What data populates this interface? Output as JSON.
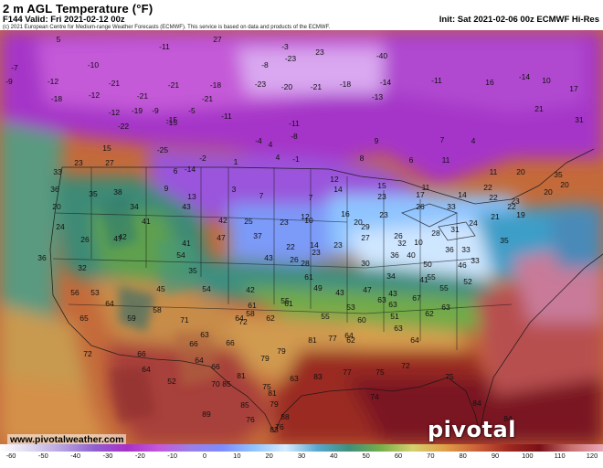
{
  "header": {
    "title": "2 m AGL Temperature (°F)",
    "valid": "F144 Valid: Fri 2021-02-12 00z",
    "init": "Init: Sat 2021-02-06 00z ECMWF Hi-Res",
    "copyright": "(c) 2021 European Centre for Medium-range Weather Forecasts (ECMWF). This service is based on data and products of the ECMWF."
  },
  "footer": {
    "website": "www.pivotalweather.com",
    "brand": "pivotal weather"
  },
  "colorbar": {
    "ticks": [
      "-60",
      "-50",
      "-40",
      "-30",
      "-20",
      "-10",
      "0",
      "10",
      "20",
      "30",
      "40",
      "50",
      "60",
      "70",
      "80",
      "90",
      "100",
      "110",
      "120"
    ],
    "colors": [
      "#ffffff",
      "#dcd6f0",
      "#b59fe0",
      "#8f5fd0",
      "#a830c8",
      "#c458dc",
      "#9a7fe6",
      "#7d8cff",
      "#8fc4ff",
      "#d6ecff",
      "#56a8d0",
      "#3f8f7a",
      "#76ae4a",
      "#d4d070",
      "#e0a048",
      "#cc6238",
      "#a02820",
      "#7a1018",
      "#c87070",
      "#eaa8b8"
    ]
  },
  "map": {
    "labels": [
      {
        "t": "5"
      },
      {
        "t": "-11"
      },
      {
        "t": "27"
      },
      {
        "t": "-3"
      },
      {
        "t": "-7"
      },
      {
        "t": "-10"
      },
      {
        "t": "-8"
      },
      {
        "t": "-23"
      },
      {
        "t": "23"
      },
      {
        "t": "-40"
      },
      {
        "t": "-9"
      },
      {
        "t": "-12"
      },
      {
        "t": "-21"
      },
      {
        "t": "-21"
      },
      {
        "t": "-18"
      },
      {
        "t": "-23"
      },
      {
        "t": "-20"
      },
      {
        "t": "-21"
      },
      {
        "t": "-18"
      },
      {
        "t": "-14"
      },
      {
        "t": "-11"
      },
      {
        "t": "16"
      },
      {
        "t": "-14"
      },
      {
        "t": "10"
      },
      {
        "t": "17"
      },
      {
        "t": "-18"
      },
      {
        "t": "-12"
      },
      {
        "t": "-21"
      },
      {
        "t": "-21"
      },
      {
        "t": "-13"
      },
      {
        "t": "31"
      },
      {
        "t": "-19"
      },
      {
        "t": "-12"
      },
      {
        "t": "-15"
      },
      {
        "t": "-11"
      },
      {
        "t": "-5"
      },
      {
        "t": "-9"
      },
      {
        "t": "21"
      },
      {
        "t": "-22"
      },
      {
        "t": "-15"
      },
      {
        "t": "-11"
      },
      {
        "t": "-8"
      },
      {
        "t": "15"
      },
      {
        "t": "-25"
      },
      {
        "t": "-4"
      },
      {
        "t": "4"
      },
      {
        "t": "9"
      },
      {
        "t": "7"
      },
      {
        "t": "4"
      },
      {
        "t": "23"
      },
      {
        "t": "27"
      },
      {
        "t": "-2"
      },
      {
        "t": "4"
      },
      {
        "t": "-1"
      },
      {
        "t": "8"
      },
      {
        "t": "6"
      },
      {
        "t": "11"
      },
      {
        "t": "11"
      },
      {
        "t": "20"
      },
      {
        "t": "35"
      },
      {
        "t": "33"
      },
      {
        "t": "6"
      },
      {
        "t": "-14"
      },
      {
        "t": "1"
      },
      {
        "t": "12"
      },
      {
        "t": "15"
      },
      {
        "t": "11"
      },
      {
        "t": "22"
      },
      {
        "t": "20"
      },
      {
        "t": "36"
      },
      {
        "t": "35"
      },
      {
        "t": "38"
      },
      {
        "t": "9"
      },
      {
        "t": "13"
      },
      {
        "t": "3"
      },
      {
        "t": "7"
      },
      {
        "t": "7"
      },
      {
        "t": "14"
      },
      {
        "t": "23"
      },
      {
        "t": "17"
      },
      {
        "t": "14"
      },
      {
        "t": "22"
      },
      {
        "t": "23"
      },
      {
        "t": "20"
      },
      {
        "t": "20"
      },
      {
        "t": "34"
      },
      {
        "t": "43"
      },
      {
        "t": "23"
      },
      {
        "t": "12"
      },
      {
        "t": "16"
      },
      {
        "t": "20"
      },
      {
        "t": "23"
      },
      {
        "t": "26"
      },
      {
        "t": "24"
      },
      {
        "t": "22"
      },
      {
        "t": "21"
      },
      {
        "t": "19"
      },
      {
        "t": "24"
      },
      {
        "t": "47"
      },
      {
        "t": "41"
      },
      {
        "t": "42"
      },
      {
        "t": "25"
      },
      {
        "t": "10"
      },
      {
        "t": "14"
      },
      {
        "t": "23"
      },
      {
        "t": "29"
      },
      {
        "t": "32"
      },
      {
        "t": "28"
      },
      {
        "t": "31"
      },
      {
        "t": "33"
      },
      {
        "t": "26"
      },
      {
        "t": "42"
      },
      {
        "t": "41"
      },
      {
        "t": "47"
      },
      {
        "t": "37"
      },
      {
        "t": "22"
      },
      {
        "t": "23"
      },
      {
        "t": "27"
      },
      {
        "t": "26"
      },
      {
        "t": "10"
      },
      {
        "t": "36"
      },
      {
        "t": "33"
      },
      {
        "t": "33"
      },
      {
        "t": "35"
      },
      {
        "t": "36"
      },
      {
        "t": "54"
      },
      {
        "t": "43"
      },
      {
        "t": "26"
      },
      {
        "t": "28"
      },
      {
        "t": "30"
      },
      {
        "t": "36"
      },
      {
        "t": "40"
      },
      {
        "t": "50"
      },
      {
        "t": "46"
      },
      {
        "t": "32"
      },
      {
        "t": "35"
      },
      {
        "t": "61"
      },
      {
        "t": "49"
      },
      {
        "t": "34"
      },
      {
        "t": "41"
      },
      {
        "t": "55"
      },
      {
        "t": "52"
      },
      {
        "t": "56"
      },
      {
        "t": "45"
      },
      {
        "t": "54"
      },
      {
        "t": "42"
      },
      {
        "t": "55"
      },
      {
        "t": "43"
      },
      {
        "t": "43"
      },
      {
        "t": "47"
      },
      {
        "t": "61"
      },
      {
        "t": "55"
      },
      {
        "t": "53"
      },
      {
        "t": "64"
      },
      {
        "t": "64"
      },
      {
        "t": "58"
      },
      {
        "t": "61"
      },
      {
        "t": "53"
      },
      {
        "t": "63"
      },
      {
        "t": "63"
      },
      {
        "t": "67"
      },
      {
        "t": "63"
      },
      {
        "t": "65"
      },
      {
        "t": "59"
      },
      {
        "t": "58"
      },
      {
        "t": "71"
      },
      {
        "t": "72"
      },
      {
        "t": "62"
      },
      {
        "t": "55"
      },
      {
        "t": "51"
      },
      {
        "t": "63"
      },
      {
        "t": "62"
      },
      {
        "t": "63"
      },
      {
        "t": "66"
      },
      {
        "t": "66"
      },
      {
        "t": "64"
      },
      {
        "t": "60"
      },
      {
        "t": "64"
      },
      {
        "t": "66"
      },
      {
        "t": "64"
      },
      {
        "t": "79"
      },
      {
        "t": "81"
      },
      {
        "t": "77"
      },
      {
        "t": "62"
      },
      {
        "t": "64"
      },
      {
        "t": "66"
      },
      {
        "t": "79"
      },
      {
        "t": "63"
      },
      {
        "t": "77"
      },
      {
        "t": "75"
      },
      {
        "t": "72"
      },
      {
        "t": "52"
      },
      {
        "t": "85"
      },
      {
        "t": "81"
      },
      {
        "t": "83"
      },
      {
        "t": "75"
      },
      {
        "t": "74"
      },
      {
        "t": "72"
      },
      {
        "t": "70"
      },
      {
        "t": "75"
      },
      {
        "t": "81"
      },
      {
        "t": "85"
      },
      {
        "t": "79"
      },
      {
        "t": "84"
      },
      {
        "t": "89"
      },
      {
        "t": "76"
      },
      {
        "t": "88"
      },
      {
        "t": "84"
      },
      {
        "t": "83"
      },
      {
        "t": "76"
      },
      {
        "t": "88"
      },
      {
        "t": "90"
      }
    ]
  }
}
